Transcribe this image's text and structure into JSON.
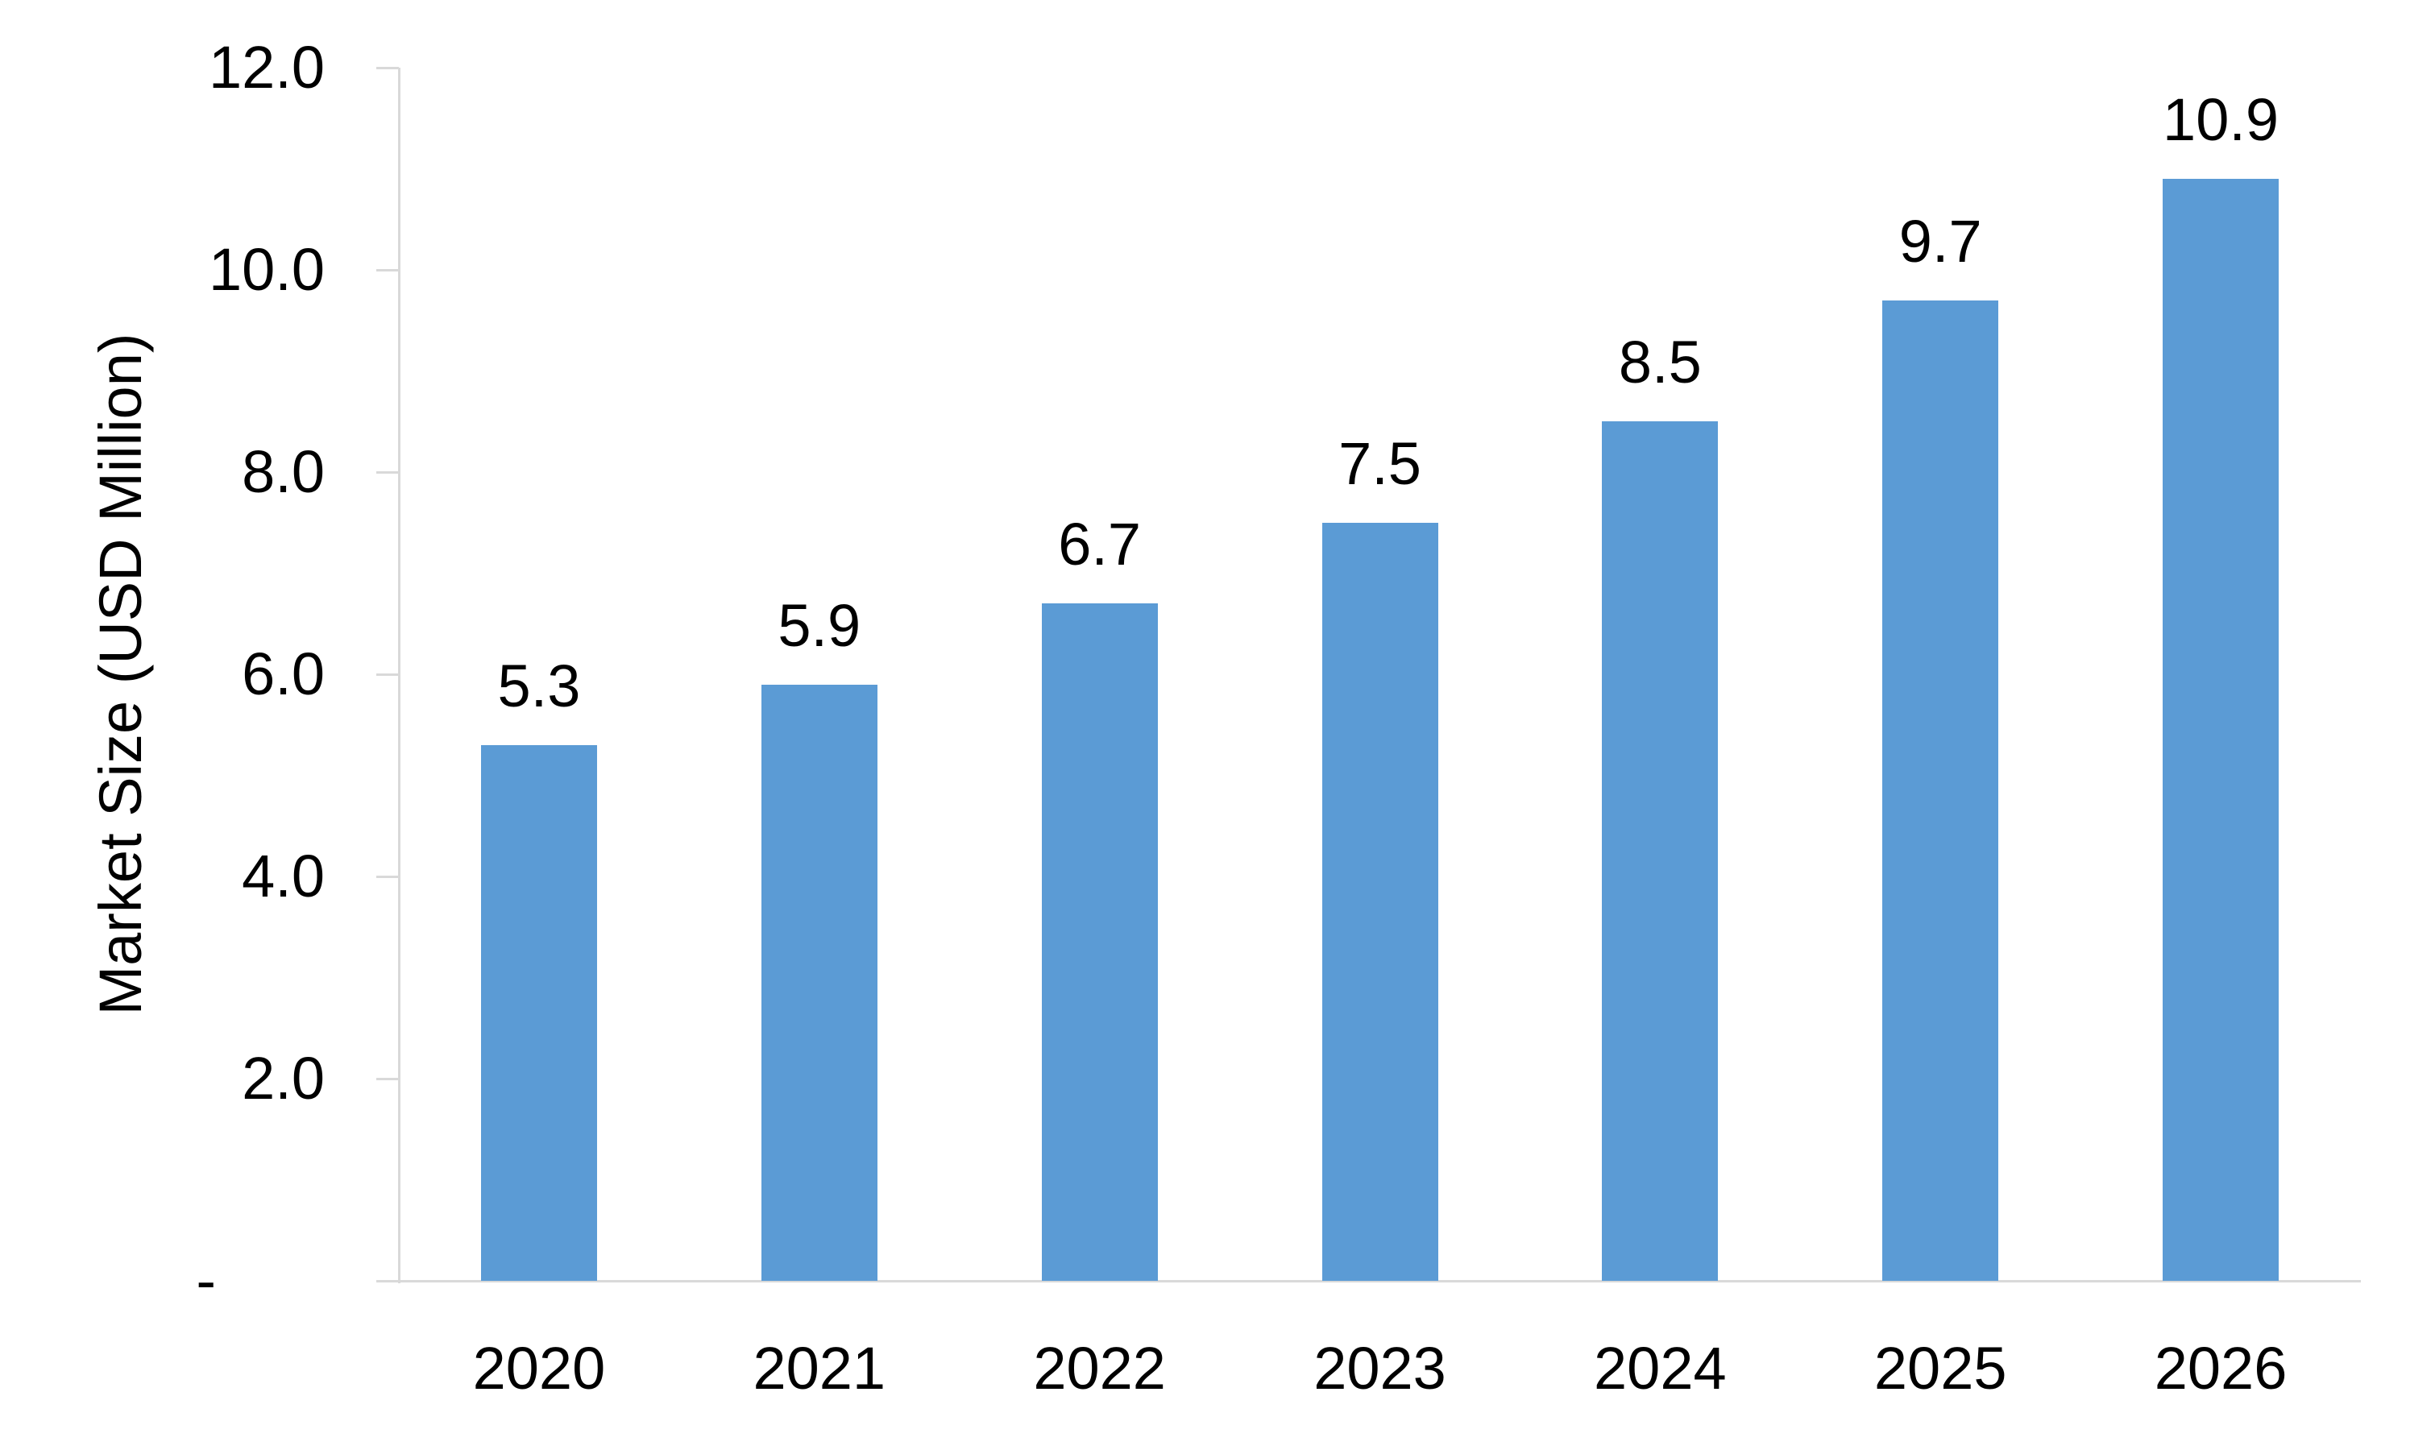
{
  "chart_data": {
    "type": "bar",
    "title": "",
    "categories": [
      "2020",
      "2021",
      "2022",
      "2023",
      "2024",
      "2025",
      "2026"
    ],
    "values": [
      5.3,
      5.9,
      6.7,
      7.5,
      8.5,
      9.7,
      10.9
    ],
    "value_labels": [
      "5.3",
      "5.9",
      "6.7",
      "7.5",
      "8.5",
      "9.7",
      "10.9"
    ],
    "xlabel": "",
    "ylabel": "Market Size (USD Million)",
    "ylim": [
      0,
      12
    ],
    "yticks": [
      {
        "value": 0,
        "label": "-"
      },
      {
        "value": 2,
        "label": "2.0"
      },
      {
        "value": 4,
        "label": "4.0"
      },
      {
        "value": 6,
        "label": "6.0"
      },
      {
        "value": 8,
        "label": "8.0"
      },
      {
        "value": 10,
        "label": "10.0"
      },
      {
        "value": 12,
        "label": "12.0"
      }
    ],
    "grid": false,
    "legend": false,
    "bar_color": "#5B9BD5",
    "axis_color": "#D9D9D9",
    "text_color": "#000000"
  }
}
